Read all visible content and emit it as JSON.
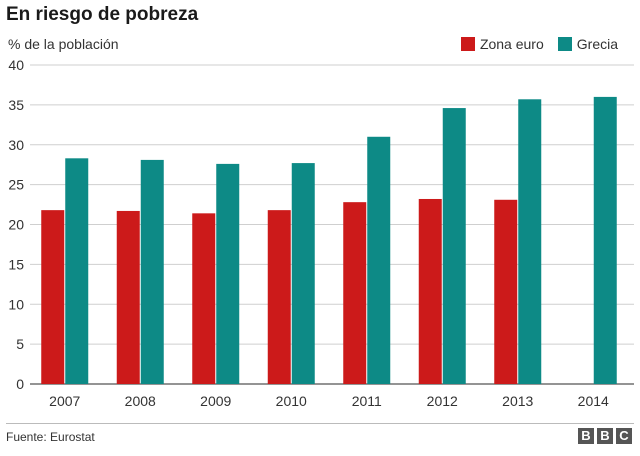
{
  "header": {
    "title": "En riesgo de pobreza"
  },
  "footer": {
    "source": "Fuente: Eurostat",
    "logo_letters": [
      "B",
      "B",
      "C"
    ]
  },
  "chart_data": {
    "type": "bar",
    "title": "En riesgo de pobreza",
    "ylabel": "% de la población",
    "xlabel": "",
    "ylim": [
      0,
      40
    ],
    "yticks": [
      0,
      5,
      10,
      15,
      20,
      25,
      30,
      35,
      40
    ],
    "grid": true,
    "legend_position": "top-right",
    "categories": [
      "2007",
      "2008",
      "2009",
      "2010",
      "2011",
      "2012",
      "2013",
      "2014"
    ],
    "series": [
      {
        "name": "Zona euro",
        "color": "#cc1a1a",
        "values": [
          21.8,
          21.7,
          21.4,
          21.8,
          22.8,
          23.2,
          23.1,
          null
        ]
      },
      {
        "name": "Grecia",
        "color": "#0d8a86",
        "values": [
          28.3,
          28.1,
          27.6,
          27.7,
          31.0,
          34.6,
          35.7,
          36.0
        ]
      }
    ]
  }
}
